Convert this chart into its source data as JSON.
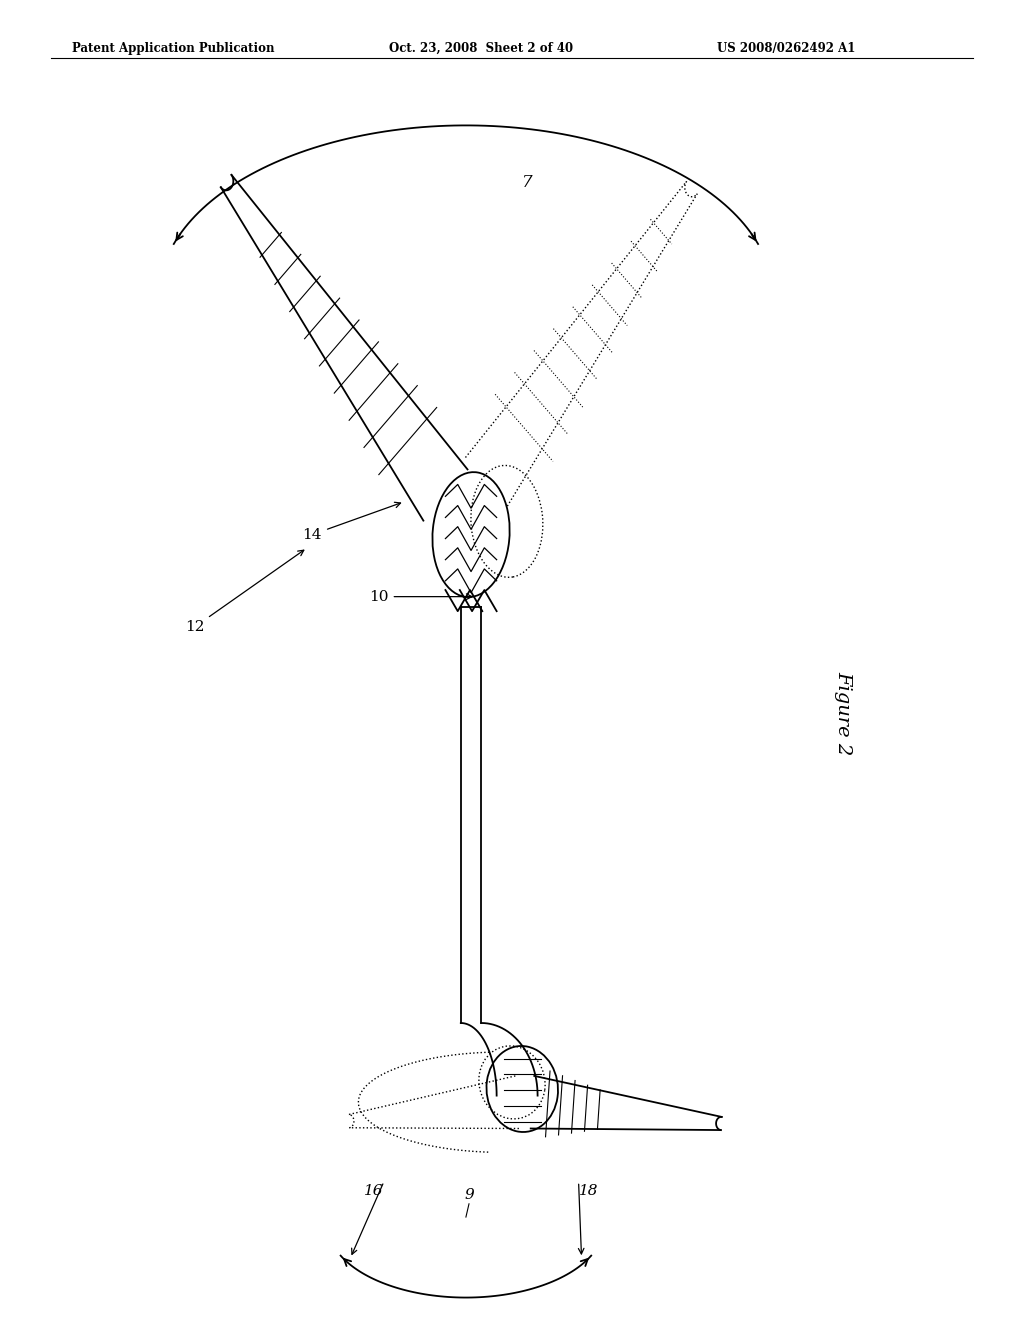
{
  "background_color": "#ffffff",
  "header_left": "Patent Application Publication",
  "header_mid": "Oct. 23, 2008  Sheet 2 of 40",
  "header_right": "US 2008/0262492 A1",
  "figure_label": "Figure 2",
  "lw": 1.3,
  "lw2": 1.0,
  "black": "#000000"
}
